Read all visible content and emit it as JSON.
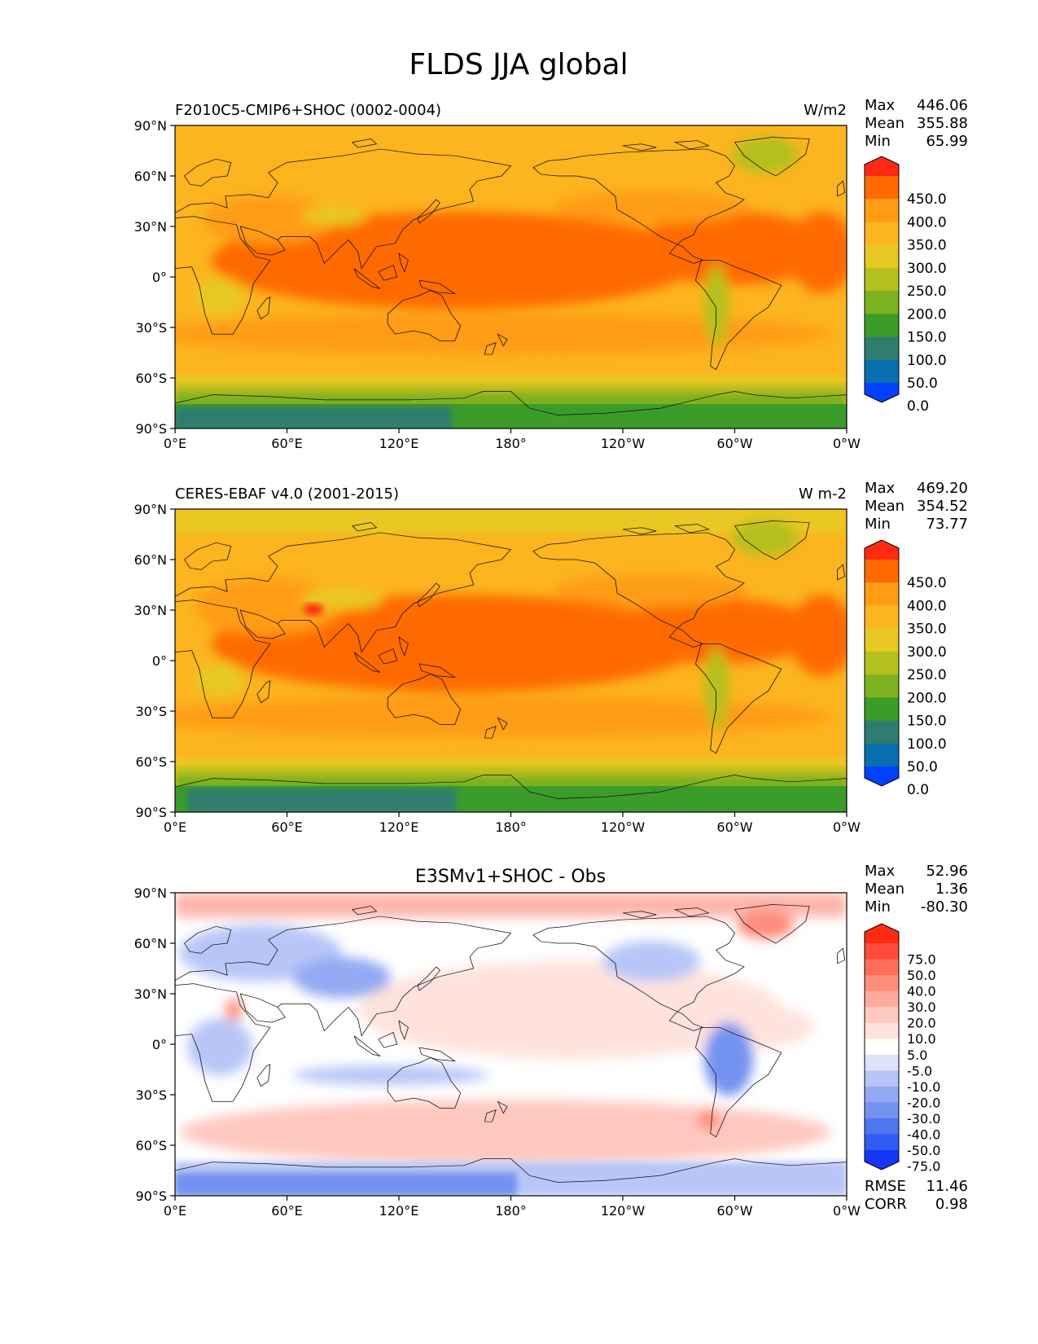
{
  "figure": {
    "title": "FLDS JJA global"
  },
  "panels": [
    {
      "name": "test",
      "left_title": "F2010C5-CMIP6+SHOC (0002-0004)",
      "center_title": "",
      "units": "W/m2",
      "stats": {
        "max_label": "Max",
        "max": "446.06",
        "mean_label": "Mean",
        "mean": "355.88",
        "min_label": "Min",
        "min": "65.99"
      },
      "colorbar": {
        "labels": [
          "450.0",
          "400.0",
          "350.0",
          "300.0",
          "250.0",
          "200.0",
          "150.0",
          "100.0",
          "50.0",
          "0.0"
        ],
        "colors_top_to_bottom": [
          "#ff2a12",
          "#ff6a00",
          "#ff9c13",
          "#fcb41f",
          "#e8c822",
          "#b4c01e",
          "#7cb21f",
          "#3c9c2a",
          "#2f7d6e",
          "#0a6fae",
          "#0040ff"
        ]
      }
    },
    {
      "name": "reference",
      "left_title": "CERES-EBAF v4.0 (2001-2015)",
      "center_title": "",
      "units": "W m-2",
      "stats": {
        "max_label": "Max",
        "max": "469.20",
        "mean_label": "Mean",
        "mean": "354.52",
        "min_label": "Min",
        "min": "73.77"
      },
      "colorbar": {
        "labels": [
          "450.0",
          "400.0",
          "350.0",
          "300.0",
          "250.0",
          "200.0",
          "150.0",
          "100.0",
          "50.0",
          "0.0"
        ],
        "colors_top_to_bottom": [
          "#ff2a12",
          "#ff6a00",
          "#ff9c13",
          "#fcb41f",
          "#e8c822",
          "#b4c01e",
          "#7cb21f",
          "#3c9c2a",
          "#2f7d6e",
          "#0a6fae",
          "#0040ff"
        ]
      }
    },
    {
      "name": "difference",
      "left_title": "",
      "center_title": "E3SMv1+SHOC - Obs",
      "units": "",
      "stats": {
        "max_label": "Max",
        "max": "52.96",
        "mean_label": "Mean",
        "mean": "1.36",
        "min_label": "Min",
        "min": "-80.30"
      },
      "colorbar": {
        "labels": [
          "75.0",
          "50.0",
          "40.0",
          "30.0",
          "20.0",
          "10.0",
          "5.0",
          "-5.0",
          "-10.0",
          "-20.0",
          "-30.0",
          "-40.0",
          "-50.0",
          "-75.0"
        ],
        "colors_top_to_bottom": [
          "#ff2a12",
          "#ff4b38",
          "#ff6c58",
          "#ff8d7c",
          "#ffaa9c",
          "#ffc8bf",
          "#ffe2dc",
          "#ffffff",
          "#dbe3fb",
          "#b7c6f7",
          "#93aaf2",
          "#7392f0",
          "#4f76ef",
          "#2f5cf2",
          "#1436f5"
        ]
      },
      "bottom_stats": {
        "rmse_label": "RMSE",
        "rmse": "11.46",
        "corr_label": "CORR",
        "corr": "0.98"
      }
    }
  ],
  "axes": {
    "lat_ticks": [
      "90°N",
      "60°N",
      "30°N",
      "0°",
      "30°S",
      "60°S",
      "90°S"
    ],
    "lon_ticks": [
      "0°E",
      "60°E",
      "120°E",
      "180°",
      "120°W",
      "60°W",
      "0°W"
    ]
  },
  "colors": {
    "test_base": "#fcb41f",
    "test_warm": "#ff6a00",
    "test_cold": "#2f7d6e",
    "diff_positive": "#ffb3aa",
    "diff_negative": "#b7c6f7"
  }
}
